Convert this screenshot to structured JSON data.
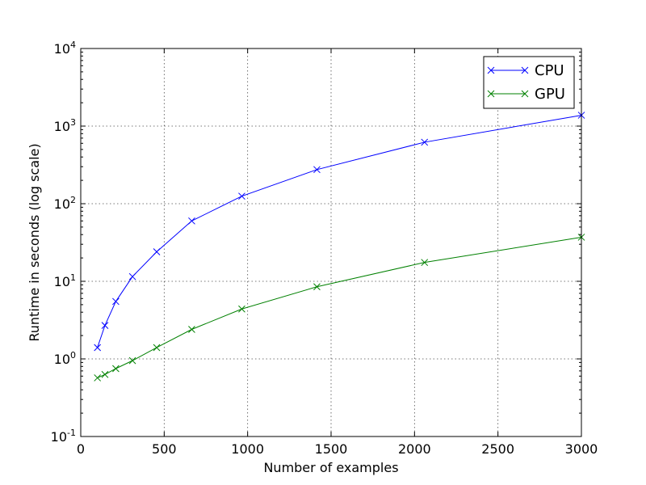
{
  "chart_data": {
    "type": "line",
    "title": "",
    "xlabel": "Number of examples",
    "ylabel": "Runtime in seconds (log scale)",
    "xlim": [
      0,
      3000
    ],
    "ylim": [
      0.1,
      10000
    ],
    "yscale": "log",
    "grid": true,
    "legend_position": "top-right",
    "x_ticks": [
      0,
      500,
      1000,
      1500,
      2000,
      2500,
      3000
    ],
    "x_tick_labels": [
      "0",
      "500",
      "1000",
      "1500",
      "2000",
      "2500",
      "3000"
    ],
    "y_ticks": [
      0.1,
      1,
      10,
      100,
      1000,
      10000
    ],
    "y_tick_bases": [
      "10",
      "10",
      "10",
      "10",
      "10",
      "10"
    ],
    "y_tick_exponents": [
      "-1",
      "0",
      "1",
      "2",
      "3",
      "4"
    ],
    "series": [
      {
        "name": "CPU",
        "color": "#0000ff",
        "marker": "x",
        "x": [
          100,
          145,
          210,
          310,
          455,
          665,
          965,
          1415,
          2060,
          3000
        ],
        "y": [
          1.4,
          2.7,
          5.5,
          11.5,
          24,
          60,
          125,
          275,
          620,
          1380
        ]
      },
      {
        "name": "GPU",
        "color": "#008000",
        "marker": "x",
        "x": [
          100,
          145,
          210,
          310,
          455,
          665,
          965,
          1415,
          2060,
          3000
        ],
        "y": [
          0.57,
          0.63,
          0.75,
          0.95,
          1.4,
          2.4,
          4.4,
          8.5,
          17.5,
          37
        ]
      }
    ]
  }
}
